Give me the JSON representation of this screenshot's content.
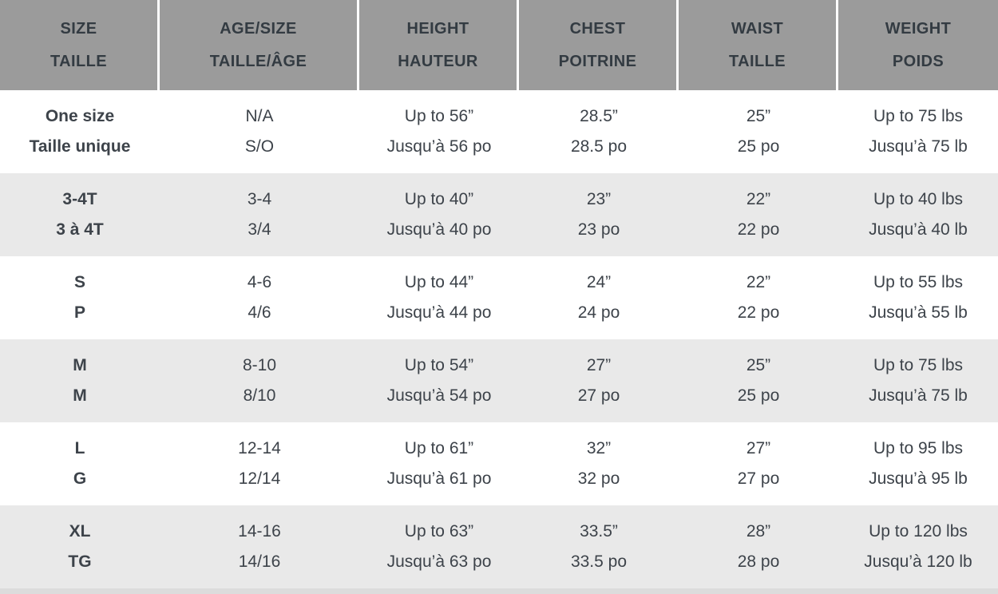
{
  "colors": {
    "header_bg": "#9b9b9b",
    "header_text": "#333b42",
    "row_bg": "#ffffff",
    "row_alt_bg": "#e9e9e9",
    "body_text": "#3d434a",
    "separator": "#ffffff",
    "bottom_strip": "#dcdcdc"
  },
  "chart_data": {
    "type": "table",
    "description": "Bilingual (English/French) children's apparel size chart",
    "columns": [
      {
        "key": "size",
        "en": "SIZE",
        "fr": "TAILLE"
      },
      {
        "key": "age-size",
        "en": "AGE/SIZE",
        "fr": "TAILLE/ÂGE"
      },
      {
        "key": "height",
        "en": "HEIGHT",
        "fr": "HAUTEUR"
      },
      {
        "key": "chest",
        "en": "CHEST",
        "fr": "POITRINE"
      },
      {
        "key": "waist",
        "en": "WAIST",
        "fr": "TAILLE"
      },
      {
        "key": "weight",
        "en": "WEIGHT",
        "fr": "POIDS"
      }
    ],
    "rows": [
      {
        "cells": [
          {
            "en": "One size",
            "fr": "Taille unique"
          },
          {
            "en": "N/A",
            "fr": "S/O"
          },
          {
            "en": "Up to 56”",
            "fr": "Jusqu’à 56 po"
          },
          {
            "en": "28.5”",
            "fr": "28.5 po"
          },
          {
            "en": "25”",
            "fr": "25 po"
          },
          {
            "en": "Up to 75 lbs",
            "fr": "Jusqu’à 75 lb"
          }
        ]
      },
      {
        "cells": [
          {
            "en": "3-4T",
            "fr": "3 à 4T"
          },
          {
            "en": "3-4",
            "fr": "3/4"
          },
          {
            "en": "Up to 40”",
            "fr": "Jusqu’à 40 po"
          },
          {
            "en": "23”",
            "fr": "23 po"
          },
          {
            "en": "22”",
            "fr": "22 po"
          },
          {
            "en": "Up to 40 lbs",
            "fr": "Jusqu’à 40 lb"
          }
        ]
      },
      {
        "cells": [
          {
            "en": "S",
            "fr": "P"
          },
          {
            "en": "4-6",
            "fr": "4/6"
          },
          {
            "en": "Up to 44”",
            "fr": "Jusqu’à 44 po"
          },
          {
            "en": "24”",
            "fr": "24 po"
          },
          {
            "en": "22”",
            "fr": "22 po"
          },
          {
            "en": "Up to 55 lbs",
            "fr": "Jusqu’à 55 lb"
          }
        ]
      },
      {
        "cells": [
          {
            "en": "M",
            "fr": "M"
          },
          {
            "en": "8-10",
            "fr": "8/10"
          },
          {
            "en": "Up to 54”",
            "fr": "Jusqu’à 54 po"
          },
          {
            "en": "27”",
            "fr": "27 po"
          },
          {
            "en": "25”",
            "fr": "25 po"
          },
          {
            "en": "Up to 75 lbs",
            "fr": "Jusqu’à 75 lb"
          }
        ]
      },
      {
        "cells": [
          {
            "en": "L",
            "fr": "G"
          },
          {
            "en": "12-14",
            "fr": "12/14"
          },
          {
            "en": "Up to 61”",
            "fr": "Jusqu’à 61 po"
          },
          {
            "en": "32”",
            "fr": "32 po"
          },
          {
            "en": "27”",
            "fr": "27 po"
          },
          {
            "en": "Up to 95 lbs",
            "fr": "Jusqu’à 95 lb"
          }
        ]
      },
      {
        "cells": [
          {
            "en": "XL",
            "fr": "TG"
          },
          {
            "en": "14-16",
            "fr": "14/16"
          },
          {
            "en": "Up to 63”",
            "fr": "Jusqu’à 63 po"
          },
          {
            "en": "33.5”",
            "fr": "33.5 po"
          },
          {
            "en": "28”",
            "fr": "28 po"
          },
          {
            "en": "Up to 120 lbs",
            "fr": "Jusqu’à 120 lb"
          }
        ]
      }
    ]
  }
}
